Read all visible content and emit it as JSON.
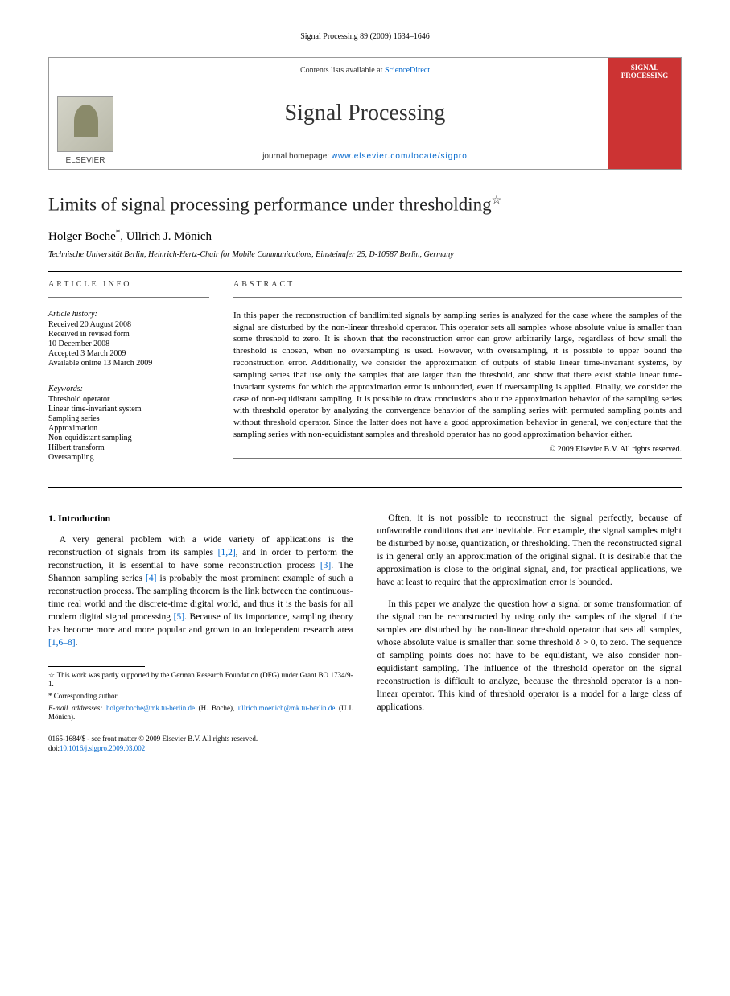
{
  "page_header": "Signal Processing 89 (2009) 1634–1646",
  "banner": {
    "contents_prefix": "Contents lists available at ",
    "contents_link": "ScienceDirect",
    "journal_name": "Signal Processing",
    "homepage_prefix": "journal homepage: ",
    "homepage_url": "www.elsevier.com/locate/sigpro",
    "publisher": "ELSEVIER",
    "cover_title": "SIGNAL PROCESSING"
  },
  "title": "Limits of signal processing performance under thresholding",
  "title_note": "☆",
  "authors": {
    "a1": "Holger Boche",
    "a1_mark": "*",
    "sep": ", ",
    "a2": "Ullrich J. Mönich"
  },
  "affiliation": "Technische Universität Berlin, Heinrich-Hertz-Chair for Mobile Communications, Einsteinufer 25, D-10587 Berlin, Germany",
  "info_label": "ARTICLE INFO",
  "abstract_label": "ABSTRACT",
  "history": {
    "label": "Article history:",
    "received": "Received 20 August 2008",
    "revised1": "Received in revised form",
    "revised2": "10 December 2008",
    "accepted": "Accepted 3 March 2009",
    "online": "Available online 13 March 2009"
  },
  "keywords": {
    "label": "Keywords:",
    "items": [
      "Threshold operator",
      "Linear time-invariant system",
      "Sampling series",
      "Approximation",
      "Non-equidistant sampling",
      "Hilbert transform",
      "Oversampling"
    ]
  },
  "abstract": "In this paper the reconstruction of bandlimited signals by sampling series is analyzed for the case where the samples of the signal are disturbed by the non-linear threshold operator. This operator sets all samples whose absolute value is smaller than some threshold to zero. It is shown that the reconstruction error can grow arbitrarily large, regardless of how small the threshold is chosen, when no oversampling is used. However, with oversampling, it is possible to upper bound the reconstruction error. Additionally, we consider the approximation of outputs of stable linear time-invariant systems, by sampling series that use only the samples that are larger than the threshold, and show that there exist stable linear time-invariant systems for which the approximation error is unbounded, even if oversampling is applied. Finally, we consider the case of non-equidistant sampling. It is possible to draw conclusions about the approximation behavior of the sampling series with threshold operator by analyzing the convergence behavior of the sampling series with permuted sampling points and without threshold operator. Since the latter does not have a good approximation behavior in general, we conjecture that the sampling series with non-equidistant samples and threshold operator has no good approximation behavior either.",
  "copyright": "© 2009 Elsevier B.V. All rights reserved.",
  "section1_heading": "1.  Introduction",
  "col1_p1_a": "A very general problem with a wide variety of applications is the reconstruction of signals from its samples ",
  "col1_p1_ref1": "[1,2]",
  "col1_p1_b": ", and in order to perform the reconstruction, it is essential to have some reconstruction process ",
  "col1_p1_ref2": "[3]",
  "col1_p1_c": ". The Shannon sampling series ",
  "col1_p1_ref3": "[4]",
  "col1_p1_d": " is probably the most prominent example of such a reconstruction process. The sampling theorem is the link between the continuous-time real world and the discrete-time digital world, and thus it is the basis for all modern digital signal processing ",
  "col1_p1_ref4": "[5]",
  "col1_p1_e": ". Because of its importance, sampling theory has become more and more popular and grown to an independent research area ",
  "col1_p1_ref5": "[1,6–8]",
  "col1_p1_f": ".",
  "col2_p1": "Often, it is not possible to reconstruct the signal perfectly, because of unfavorable conditions that are inevitable. For example, the signal samples might be disturbed by noise, quantization, or thresholding. Then the reconstructed signal is in general only an approximation of the original signal. It is desirable that the approximation is close to the original signal, and, for practical applications, we have at least to require that the approximation error is bounded.",
  "col2_p2": "In this paper we analyze the question how a signal or some transformation of the signal can be reconstructed by using only the samples of the signal if the samples are disturbed by the non-linear threshold operator that sets all samples, whose absolute value is smaller than some threshold δ > 0, to zero. The sequence of sampling points does not have to be equidistant, we also consider non-equidistant sampling. The influence of the threshold operator on the signal reconstruction is difficult to analyze, because the threshold operator is a non-linear operator. This kind of threshold operator is a model for a large class of applications.",
  "footnotes": {
    "star": "☆ This work was partly supported by the German Research Foundation (DFG) under Grant BO 1734/9-1.",
    "corr": "* Corresponding author.",
    "email_label": "E-mail addresses: ",
    "email1": "holger.boche@mk.tu-berlin.de",
    "email1_who": " (H. Boche), ",
    "email2": "ullrich.moenich@mk.tu-berlin.de",
    "email2_who": " (U.J. Mönich)."
  },
  "doi": {
    "line1": "0165-1684/$ - see front matter © 2009 Elsevier B.V. All rights reserved.",
    "line2_prefix": "doi:",
    "line2_link": "10.1016/j.sigpro.2009.03.002"
  }
}
